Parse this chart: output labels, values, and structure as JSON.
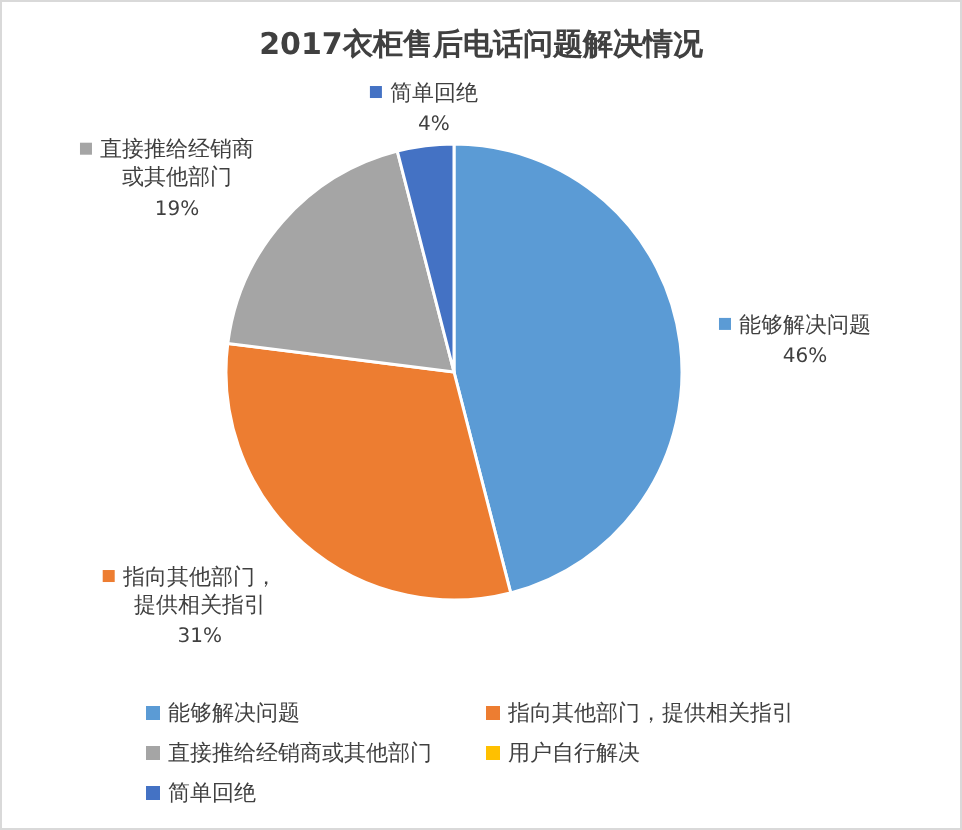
{
  "chart_data": {
    "type": "pie",
    "title": "2017衣柜售后电话问题解决情况",
    "categories": [
      "能够解决问题",
      "指向其他部门，提供相关指引",
      "直接推给经销商或其他部门",
      "用户自行解决",
      "简单回绝"
    ],
    "values": [
      46,
      31,
      19,
      0,
      4
    ],
    "colors": [
      "#5b9bd5",
      "#ed7d31",
      "#a5a5a5",
      "#ffc000",
      "#4472c4"
    ],
    "value_labels": [
      "46%",
      "31%",
      "19%",
      null,
      "4%"
    ],
    "legend": "bottom"
  }
}
